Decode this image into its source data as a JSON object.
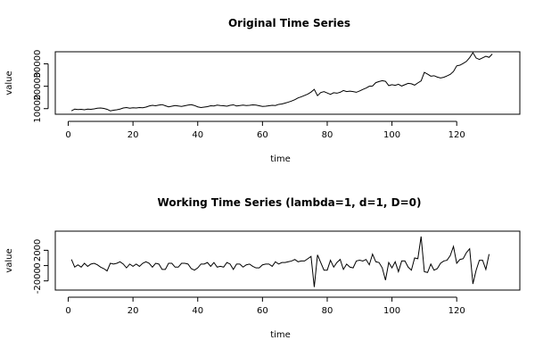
{
  "chart_data": [
    {
      "type": "line",
      "title": "Original Time Series",
      "xlabel": "time",
      "ylabel": "value",
      "color": "#000000",
      "x": [
        1,
        2,
        3,
        4,
        5,
        6,
        7,
        8,
        9,
        10,
        11,
        12,
        13,
        14,
        15,
        16,
        17,
        18,
        19,
        20,
        21,
        22,
        23,
        24,
        25,
        26,
        27,
        28,
        29,
        30,
        31,
        32,
        33,
        34,
        35,
        36,
        37,
        38,
        39,
        40,
        41,
        42,
        43,
        44,
        45,
        46,
        47,
        48,
        49,
        50,
        51,
        52,
        53,
        54,
        55,
        56,
        57,
        58,
        59,
        60,
        61,
        62,
        63,
        64,
        65,
        66,
        67,
        68,
        69,
        70,
        71,
        72,
        73,
        74,
        75,
        76,
        77,
        78,
        79,
        80,
        81,
        82,
        83,
        84,
        85,
        86,
        87,
        88,
        89,
        90,
        91,
        92,
        93,
        94,
        95,
        96,
        97,
        98,
        99,
        100,
        101,
        102,
        103,
        104,
        105,
        106,
        107,
        108,
        109,
        110,
        111,
        112,
        113,
        114,
        115,
        116,
        117,
        118,
        119,
        120,
        121,
        122,
        123,
        124,
        125,
        126,
        127,
        128,
        129,
        130,
        131
      ],
      "values": [
        9000,
        9800,
        9600,
        9700,
        9500,
        9800,
        9700,
        9900,
        10200,
        10300,
        10100,
        9700,
        9000,
        9300,
        9500,
        9800,
        10300,
        10500,
        10200,
        10400,
        10300,
        10500,
        10400,
        10700,
        11200,
        11500,
        11300,
        11600,
        11800,
        11300,
        10800,
        11100,
        11400,
        11200,
        11000,
        11300,
        11600,
        11800,
        11400,
        10800,
        10500,
        10700,
        10900,
        11300,
        11200,
        11600,
        11400,
        11300,
        11100,
        11500,
        11700,
        11200,
        11400,
        11600,
        11400,
        11500,
        11700,
        11600,
        11300,
        11000,
        11100,
        11300,
        11500,
        11400,
        11900,
        12100,
        12500,
        12900,
        13400,
        14000,
        14800,
        15300,
        15900,
        16500,
        17400,
        18600,
        15800,
        17200,
        17600,
        17000,
        16400,
        17100,
        16900,
        17300,
        18100,
        17600,
        17800,
        17600,
        17300,
        17900,
        18600,
        19200,
        20000,
        20100,
        21600,
        22100,
        22500,
        22200,
        20300,
        20700,
        20400,
        20900,
        20100,
        20700,
        21300,
        21100,
        20500,
        21500,
        22400,
        26200,
        25400,
        24500,
        24700,
        24100,
        23700,
        24000,
        24600,
        25300,
        26600,
        29100,
        29400,
        30200,
        31100,
        32800,
        35000,
        32600,
        32000,
        32700,
        33400,
        32900,
        34400
      ],
      "xlim": [
        -4,
        139.5
      ],
      "ylim": [
        7500,
        35400
      ],
      "xticks": [
        0,
        20,
        40,
        60,
        80,
        100,
        120
      ],
      "yticks": [
        10000,
        20000,
        30000
      ]
    },
    {
      "type": "line",
      "title": "Working Time Series (lambda=1, d=1, D=0)",
      "xlabel": "time",
      "ylabel": "value",
      "color": "#000000",
      "x": [
        1,
        2,
        3,
        4,
        5,
        6,
        7,
        8,
        9,
        10,
        11,
        12,
        13,
        14,
        15,
        16,
        17,
        18,
        19,
        20,
        21,
        22,
        23,
        24,
        25,
        26,
        27,
        28,
        29,
        30,
        31,
        32,
        33,
        34,
        35,
        36,
        37,
        38,
        39,
        40,
        41,
        42,
        43,
        44,
        45,
        46,
        47,
        48,
        49,
        50,
        51,
        52,
        53,
        54,
        55,
        56,
        57,
        58,
        59,
        60,
        61,
        62,
        63,
        64,
        65,
        66,
        67,
        68,
        69,
        70,
        71,
        72,
        73,
        74,
        75,
        76,
        77,
        78,
        79,
        80,
        81,
        82,
        83,
        84,
        85,
        86,
        87,
        88,
        89,
        90,
        91,
        92,
        93,
        94,
        95,
        96,
        97,
        98,
        99,
        100,
        101,
        102,
        103,
        104,
        105,
        106,
        107,
        108,
        109,
        110,
        111,
        112,
        113,
        114,
        115,
        116,
        117,
        118,
        119,
        120,
        121,
        122,
        123,
        124,
        125,
        126,
        127,
        128,
        129,
        130
      ],
      "values": [
        800,
        -200,
        100,
        -200,
        300,
        -100,
        200,
        300,
        100,
        -200,
        -400,
        -700,
        300,
        200,
        300,
        500,
        200,
        -300,
        200,
        -100,
        200,
        -100,
        300,
        500,
        300,
        -200,
        300,
        200,
        -500,
        -500,
        300,
        300,
        -200,
        -200,
        300,
        300,
        200,
        -400,
        -600,
        -300,
        200,
        200,
        400,
        -100,
        400,
        -200,
        -100,
        -200,
        400,
        200,
        -500,
        200,
        200,
        -200,
        100,
        200,
        -100,
        -300,
        -300,
        100,
        200,
        200,
        -100,
        500,
        200,
        400,
        400,
        500,
        600,
        800,
        500,
        600,
        600,
        900,
        1200,
        -2800,
        1400,
        400,
        -600,
        -600,
        700,
        -200,
        400,
        800,
        -500,
        200,
        -200,
        -300,
        600,
        700,
        600,
        800,
        100,
        1500,
        500,
        400,
        -300,
        -1900,
        400,
        -300,
        500,
        -800,
        600,
        600,
        -200,
        -600,
        1000,
        900,
        3800,
        -800,
        -900,
        200,
        -600,
        -400,
        300,
        600,
        700,
        1300,
        2500,
        300,
        800,
        900,
        1700,
        2200,
        -2400,
        -600,
        700,
        700,
        -500,
        1500
      ],
      "xlim": [
        -4,
        139.5
      ],
      "ylim": [
        -3200,
        4500
      ],
      "xticks": [
        0,
        20,
        40,
        60,
        80,
        100,
        120
      ],
      "yticks": [
        -2000,
        0,
        2000
      ]
    }
  ]
}
